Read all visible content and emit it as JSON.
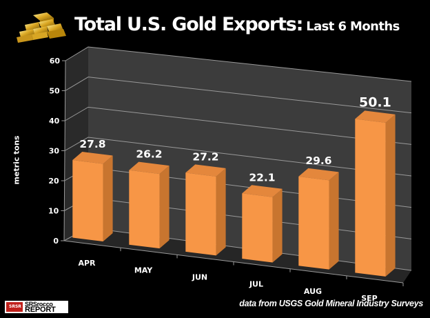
{
  "header": {
    "title_main": "Total U.S. Gold Exports:",
    "title_sub": "Last 6 Months",
    "icon": "gold-bars-icon"
  },
  "footer": {
    "source": "data from USGS Gold Mineral Industry Surveys",
    "logo_line1": "SRSrocco",
    "logo_line2": "REPORT",
    "logo_badge": "SRSR"
  },
  "chart_data": {
    "type": "bar",
    "style": "3d-column",
    "title": "Total U.S. Gold Exports: Last 6 Months",
    "xlabel": "",
    "ylabel": "metric tons",
    "categories": [
      "APR",
      "MAY",
      "JUN",
      "JUL",
      "AUG",
      "SEP"
    ],
    "values": [
      27.8,
      26.2,
      27.2,
      22.1,
      29.6,
      50.1
    ],
    "data_labels": [
      "27.8",
      "26.2",
      "27.2",
      "22.1",
      "29.6",
      "50.1"
    ],
    "ylim": [
      0,
      60
    ],
    "yticks": [
      0,
      10,
      20,
      30,
      40,
      50,
      60
    ],
    "ytick_labels": [
      "0",
      "10",
      "20",
      "30",
      "40",
      "50",
      "60"
    ],
    "grid": true,
    "legend": "none",
    "colors": {
      "bar_front": "#f79646",
      "bar_side": "#c8752f",
      "bar_top": "#e4873c",
      "back_wall": "#3c3c3c",
      "side_wall": "#2a2a2a",
      "floor": "#262626",
      "gridline": "#9a9a9a",
      "background": "#000000"
    }
  }
}
